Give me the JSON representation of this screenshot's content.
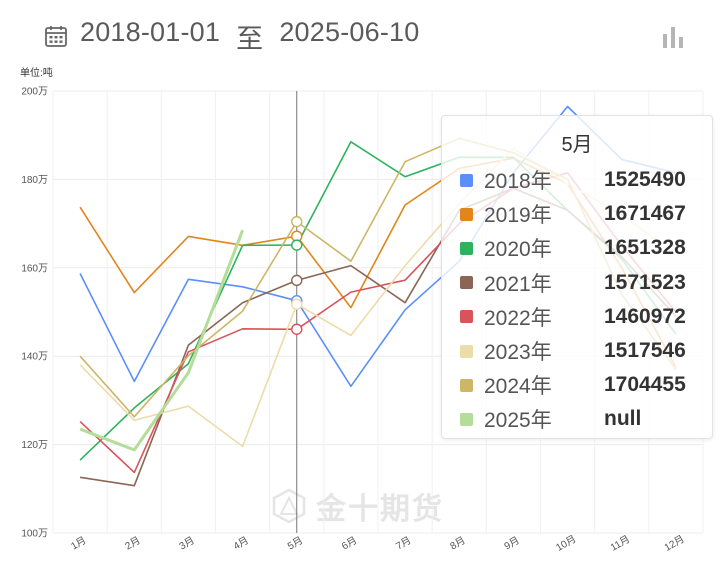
{
  "header": {
    "start_date": "2018-01-01",
    "separator": "至",
    "end_date": "2025-06-10"
  },
  "icons": {
    "calendar": "calendar-icon",
    "chart_toggle": "bar-chart-icon",
    "watermark": "jin10-logo"
  },
  "unit_label": "单位:吨",
  "watermark_text": "金十期货",
  "tooltip": {
    "title": "5月",
    "rows": [
      {
        "name": "2018年",
        "value": "1525490",
        "color": "#5b8ff9"
      },
      {
        "name": "2019年",
        "value": "1671467",
        "color": "#e0861a"
      },
      {
        "name": "2020年",
        "value": "1651328",
        "color": "#2db35d"
      },
      {
        "name": "2021年",
        "value": "1571523",
        "color": "#8b6654"
      },
      {
        "name": "2022年",
        "value": "1460972",
        "color": "#d9535a"
      },
      {
        "name": "2023年",
        "value": "1517546",
        "color": "#ecdcaa"
      },
      {
        "name": "2024年",
        "value": "1704455",
        "color": "#cdb666"
      },
      {
        "name": "2025年",
        "value": "null",
        "color": "#b3dd98"
      }
    ]
  },
  "chart_data": {
    "type": "line",
    "categories": [
      "1月",
      "2月",
      "3月",
      "4月",
      "5月",
      "6月",
      "7月",
      "8月",
      "9月",
      "10月",
      "11月",
      "12月"
    ],
    "y_tick_labels": [
      "100万",
      "120万",
      "140万",
      "160万",
      "180万",
      "200万"
    ],
    "ylim": [
      1000000,
      2000000
    ],
    "grid": true,
    "highlighted_category": "5月",
    "series": [
      {
        "name": "2018年",
        "color": "#5b8ff9",
        "values": [
          1587000,
          1343000,
          1574000,
          1557000,
          1525490,
          1332000,
          1505000,
          1615000,
          1815000,
          1965000,
          1845000,
          1815000
        ]
      },
      {
        "name": "2019年",
        "color": "#e0861a",
        "values": [
          1737000,
          1544000,
          1671000,
          1651000,
          1671467,
          1510000,
          1742000,
          1825000,
          1848000,
          1790000,
          1600000,
          1375000
        ]
      },
      {
        "name": "2020年",
        "color": "#2db35d",
        "values": [
          1165000,
          1283000,
          1383000,
          1651000,
          1651328,
          1885000,
          1806000,
          1850000,
          1850000,
          1730000,
          1620000,
          1450000
        ]
      },
      {
        "name": "2021年",
        "color": "#8b6654",
        "values": [
          1126000,
          1107000,
          1425000,
          1521000,
          1571523,
          1605000,
          1521000,
          1730000,
          1780000,
          1730000,
          1625000,
          1490000
        ]
      },
      {
        "name": "2022年",
        "color": "#d9535a",
        "values": [
          1252000,
          1137000,
          1410000,
          1462000,
          1460972,
          1545000,
          1572000,
          1700000,
          1780000,
          1815000,
          1650000,
          1500000
        ]
      },
      {
        "name": "2023年",
        "color": "#ecdcaa",
        "values": [
          1380000,
          1255000,
          1287000,
          1196000,
          1517546,
          1447000,
          1605000,
          1745000,
          1870000,
          1790000,
          1720000,
          1630000
        ]
      },
      {
        "name": "2024年",
        "color": "#cdb666",
        "values": [
          1400000,
          1263000,
          1401000,
          1502000,
          1704455,
          1615000,
          1840000,
          1893000,
          1860000,
          1800000,
          1540000,
          1370000
        ]
      },
      {
        "name": "2025年",
        "color": "#b3dd98",
        "values": [
          1235000,
          1188000,
          1363000,
          1685000,
          null,
          null,
          null,
          null,
          null,
          null,
          null,
          null
        ]
      }
    ]
  }
}
